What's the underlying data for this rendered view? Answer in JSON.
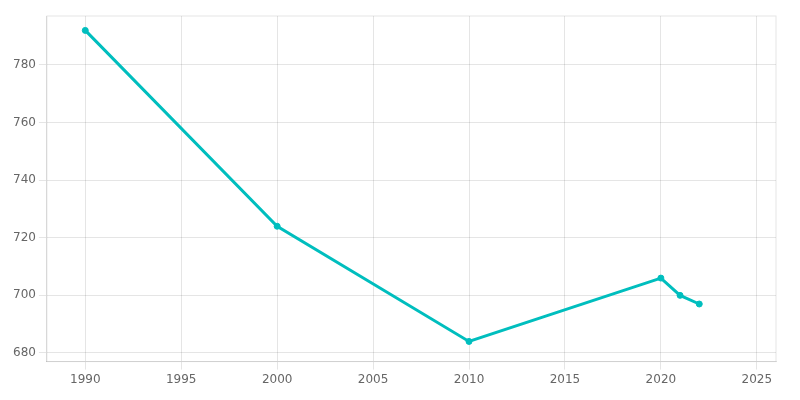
{
  "chart_data": {
    "type": "line",
    "x": [
      1990,
      2000,
      2010,
      2020,
      2021,
      2022
    ],
    "series": [
      {
        "values": [
          792,
          724,
          684,
          706,
          700,
          697
        ],
        "color": "#00BEBE",
        "marker": "circle"
      }
    ],
    "xlim": [
      1988,
      2026
    ],
    "xticks": [
      1990,
      1995,
      2000,
      2005,
      2010,
      2015,
      2020,
      2025
    ],
    "ylim": [
      677,
      797
    ],
    "yticks": [
      680,
      700,
      720,
      740,
      760,
      780
    ],
    "grid": true
  }
}
